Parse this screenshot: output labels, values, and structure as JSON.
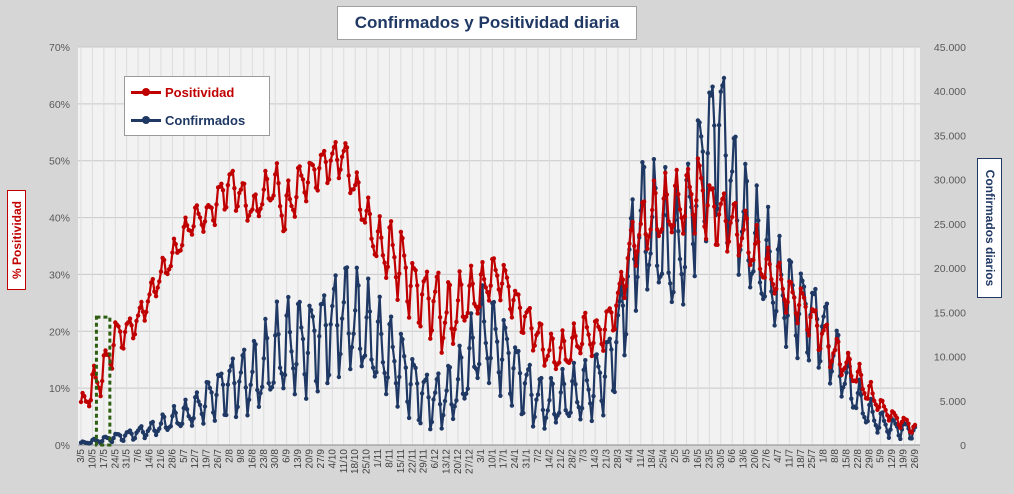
{
  "title": "Confirmados  y Positividad  diaria",
  "y_left_label": "% Positividad",
  "y_right_label": "Confirmados diarios",
  "legend": [
    {
      "label": "Positividad",
      "color": "#c00000"
    },
    {
      "label": "Confirmados",
      "color": "#1f3864"
    }
  ],
  "chart_data": {
    "type": "line",
    "title": "Confirmados  y Positividad  diaria",
    "x_tick_labels": [
      "3/5",
      "10/5",
      "17/5",
      "24/5",
      "31/5",
      "7/6",
      "14/6",
      "21/6",
      "28/6",
      "5/7",
      "12/7",
      "19/7",
      "26/7",
      "2/8",
      "9/8",
      "16/8",
      "23/8",
      "30/8",
      "6/9",
      "13/9",
      "20/9",
      "27/9",
      "4/10",
      "11/10",
      "18/10",
      "25/10",
      "1/11",
      "8/11",
      "15/11",
      "22/11",
      "29/11",
      "6/12",
      "13/12",
      "20/12",
      "27/12",
      "3/1",
      "10/1",
      "17/1",
      "24/1",
      "31/1",
      "7/2",
      "14/2",
      "21/2",
      "28/2",
      "7/3",
      "14/3",
      "21/3",
      "28/3",
      "4/4",
      "11/4",
      "18/4",
      "25/4",
      "2/5",
      "9/5",
      "16/5",
      "23/5",
      "30/5",
      "6/6",
      "13/6",
      "20/6",
      "27/6",
      "4/7",
      "11/7",
      "18/7",
      "25/7",
      "1/8",
      "8/8",
      "15/8",
      "22/8",
      "29/8",
      "5/9",
      "12/9",
      "19/9",
      "26/9"
    ],
    "y_left": {
      "label": "% Positividad",
      "range": [
        0,
        70
      ],
      "ticks": [
        "0%",
        "10%",
        "20%",
        "30%",
        "40%",
        "50%",
        "60%",
        "70%"
      ]
    },
    "y_right": {
      "label": "Confirmados diarios",
      "range": [
        0,
        45000
      ],
      "ticks": [
        "0",
        "5.000",
        "10.000",
        "15.000",
        "20.000",
        "25.000",
        "30.000",
        "35.000",
        "40.000",
        "45.000"
      ]
    },
    "grid": true,
    "legend_position": "top-left",
    "highlight_box": {
      "from": "10/5",
      "to": "17/5",
      "style": "dashed green"
    },
    "series": [
      {
        "name": "Positividad",
        "axis": "left",
        "color": "#c00000",
        "weekly_mean": [
          7,
          10,
          13,
          19,
          20,
          22,
          26,
          30,
          33,
          37,
          40,
          40,
          43,
          46,
          44,
          41,
          44,
          46,
          40,
          46,
          47,
          49,
          50,
          51,
          45,
          40,
          35,
          34,
          32,
          28,
          26,
          25,
          22,
          24,
          26,
          27,
          30,
          29,
          25,
          22,
          19,
          16,
          16,
          17,
          20,
          19,
          21,
          25,
          34,
          38,
          40,
          41,
          42,
          43,
          45,
          42,
          40,
          39,
          37,
          34,
          31,
          29,
          26,
          25,
          22,
          19,
          16,
          14,
          12,
          9,
          7,
          5,
          4,
          3
        ],
        "weekly_amplitude": [
          1,
          3,
          3,
          3,
          2,
          2,
          2,
          2,
          2,
          2,
          2,
          2,
          3,
          3,
          3,
          2,
          3,
          3,
          5,
          3,
          3,
          3,
          3,
          3,
          3,
          3,
          4,
          5,
          6,
          5,
          5,
          6,
          6,
          5,
          4,
          4,
          3,
          3,
          3,
          3,
          3,
          3,
          3,
          3,
          3,
          3,
          3,
          3,
          4,
          4,
          5,
          5,
          5,
          5,
          6,
          5,
          5,
          4,
          4,
          4,
          3,
          3,
          3,
          3,
          3,
          3,
          3,
          2,
          2,
          2,
          1,
          1,
          1,
          1
        ]
      },
      {
        "name": "Confirmados",
        "axis": "right",
        "color": "#1f3864",
        "weekly_mean": [
          200,
          400,
          600,
          900,
          1100,
          1400,
          1700,
          2200,
          2800,
          3300,
          4000,
          5200,
          6000,
          6800,
          7200,
          7500,
          8500,
          10000,
          11000,
          11500,
          11500,
          12500,
          13500,
          14800,
          14000,
          12500,
          11000,
          10000,
          9000,
          7000,
          5500,
          5000,
          5500,
          6500,
          9000,
          12500,
          12000,
          10500,
          8500,
          6500,
          5000,
          4500,
          5000,
          5500,
          6000,
          7000,
          8500,
          12000,
          20000,
          25000,
          24000,
          23000,
          21000,
          24000,
          30000,
          34000,
          36000,
          29000,
          25000,
          22000,
          20000,
          18000,
          16500,
          15500,
          14500,
          13000,
          10000,
          7500,
          5000,
          3500,
          2500,
          2000,
          1800,
          1600
        ],
        "weekly_amplitude": [
          100,
          200,
          300,
          400,
          500,
          600,
          700,
          900,
          1100,
          1300,
          1600,
          2100,
          2500,
          3000,
          3300,
          3600,
          4200,
          4500,
          4700,
          4900,
          4900,
          5100,
          5300,
          5500,
          5200,
          4900,
          4600,
          4300,
          3900,
          3400,
          2900,
          2800,
          3000,
          3300,
          3900,
          4600,
          4500,
          4100,
          3600,
          3200,
          2700,
          2500,
          2600,
          2800,
          3000,
          3400,
          3800,
          4500,
          6000,
          6800,
          6700,
          6500,
          6200,
          6700,
          7500,
          8000,
          8200,
          7000,
          6300,
          5800,
          5500,
          5100,
          4800,
          4600,
          4300,
          4000,
          3300,
          2700,
          2000,
          1500,
          1200,
          1000,
          900,
          800
        ]
      }
    ]
  }
}
